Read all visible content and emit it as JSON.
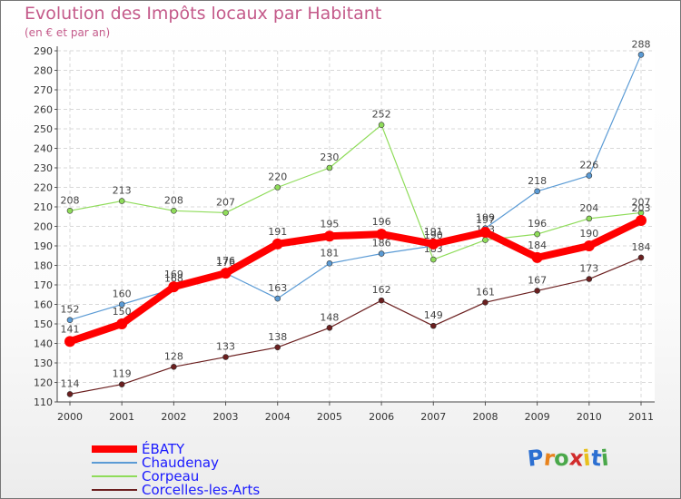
{
  "header": {
    "title": "Evolution des Impôts locaux par Habitant",
    "subtitle": "(en € et par an)"
  },
  "chart_data": {
    "type": "line",
    "title": "Evolution des Impôts locaux par Habitant",
    "subtitle": "(en € et par an)",
    "xlabel": "",
    "ylabel": "",
    "x": [
      "2000",
      "2001",
      "2002",
      "2003",
      "2004",
      "2005",
      "2006",
      "2007",
      "2008",
      "2009",
      "2010",
      "2011"
    ],
    "ylim": [
      110,
      290
    ],
    "yticks": [
      110,
      120,
      130,
      140,
      150,
      160,
      170,
      180,
      190,
      200,
      210,
      220,
      230,
      240,
      250,
      260,
      270,
      280,
      290
    ],
    "grid": true,
    "legend_position": "bottom-left",
    "series": [
      {
        "name": "ÉBATY",
        "color": "#ff0000",
        "values": [
          141,
          150,
          169,
          176,
          191,
          195,
          196,
          191,
          197,
          184,
          190,
          203
        ]
      },
      {
        "name": "Chaudenay",
        "color": "#5b9bd5",
        "values": [
          152,
          160,
          168,
          176,
          163,
          181,
          186,
          190,
          199,
          218,
          226,
          288
        ]
      },
      {
        "name": "Corpeau",
        "color": "#8fdc5a",
        "values": [
          208,
          213,
          208,
          207,
          220,
          230,
          252,
          183,
          193,
          196,
          204,
          207
        ]
      },
      {
        "name": "Corcelles-les-Arts",
        "color": "#6b1f1f",
        "values": [
          114,
          119,
          128,
          133,
          138,
          148,
          162,
          149,
          161,
          167,
          173,
          184
        ]
      }
    ]
  },
  "logo": {
    "letters": [
      "P",
      "r",
      "o",
      "x",
      "i",
      "t",
      "i"
    ],
    "colors": [
      "#2c6fd1",
      "#e8831d",
      "#4aa84a",
      "#d12c2c",
      "#e8c01d",
      "#2c6fd1",
      "#4aa84a"
    ]
  }
}
